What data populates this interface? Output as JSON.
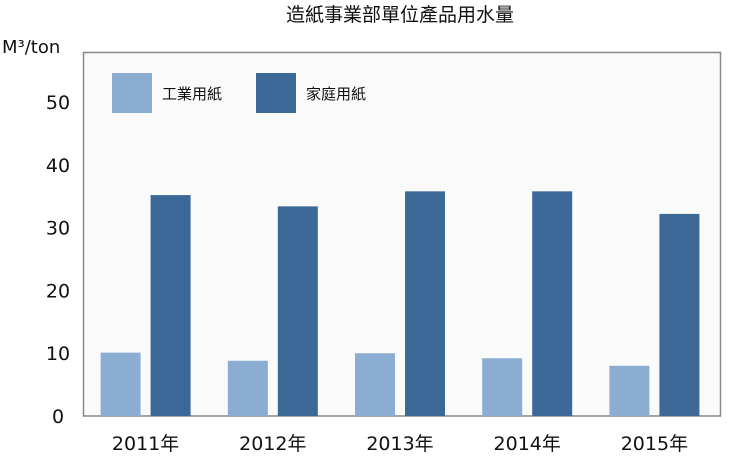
{
  "chart_data": {
    "type": "bar",
    "title": "造紙事業部單位產品用水量",
    "ylabel": "M³/ton",
    "xlabel": "",
    "categories": [
      "2011年",
      "2012年",
      "2013年",
      "2014年",
      "2015年"
    ],
    "series": [
      {
        "name": "工業用紙",
        "values": [
          10.1,
          8.8,
          10.0,
          9.2,
          8.0
        ],
        "color": "#8badd2"
      },
      {
        "name": "家庭用紙",
        "values": [
          35.2,
          33.4,
          35.8,
          35.8,
          32.2
        ],
        "color": "#3c6898"
      }
    ],
    "yticks": [
      0,
      10,
      20,
      30,
      40,
      50
    ],
    "ylim": [
      0,
      58
    ],
    "grid": false,
    "legend": "top-left",
    "plot_background": "#fafafa"
  }
}
